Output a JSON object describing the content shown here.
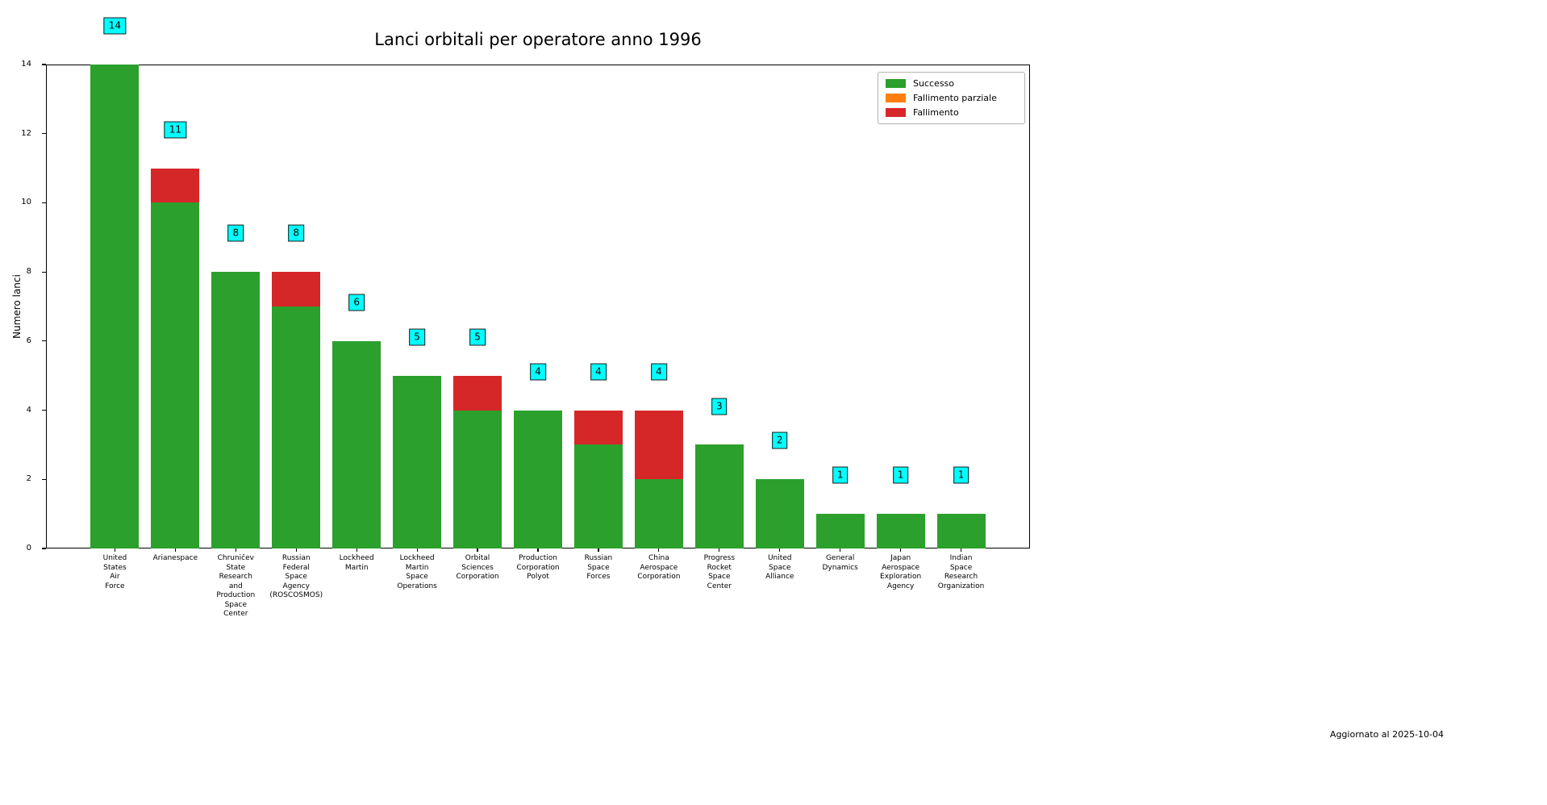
{
  "figure": {
    "footer_note": "Aggiornato al 2025-10-04"
  },
  "colors": {
    "success": "#2ca02c",
    "partial_failure": "#ff7f0e",
    "failure": "#d62728",
    "value_label_bg": "#00ffff",
    "value_label_border": "#1a1a1a",
    "axis": "#000000"
  },
  "chart_data": {
    "type": "bar",
    "stacked": true,
    "title": "Lanci orbitali per operatore anno 1996",
    "xlabel": "",
    "ylabel": "Numero lanci",
    "ylim": [
      0,
      14
    ],
    "yticks": [
      0,
      2,
      4,
      6,
      8,
      10,
      12,
      14
    ],
    "grid": false,
    "legend_position": "upper-right",
    "categories": [
      "United\nStates\nAir\nForce",
      "Arianespace",
      "Chruničev\nState\nResearch\nand\nProduction\nSpace\nCenter",
      "Russian\nFederal\nSpace\nAgency\n(ROSCOSMOS)",
      "Lockheed\nMartin",
      "Lockheed\nMartin\nSpace\nOperations",
      "Orbital\nSciences\nCorporation",
      "Production\nCorporation\nPolyot",
      "Russian\nSpace\nForces",
      "China\nAerospace\nCorporation",
      "Progress\nRocket\nSpace\nCenter",
      "United\nSpace\nAlliance",
      "General\nDynamics",
      "Japan\nAerospace\nExploration\nAgency",
      "Indian\nSpace\nResearch\nOrganization"
    ],
    "series": [
      {
        "name": "Successo",
        "color": "#2ca02c",
        "values": [
          14,
          10,
          8,
          7,
          6,
          5,
          4,
          4,
          3,
          2,
          3,
          2,
          1,
          1,
          1
        ]
      },
      {
        "name": "Fallimento parziale",
        "color": "#ff7f0e",
        "values": [
          0,
          0,
          0,
          0,
          0,
          0,
          0,
          0,
          0,
          0,
          0,
          0,
          0,
          0,
          0
        ]
      },
      {
        "name": "Fallimento",
        "color": "#d62728",
        "values": [
          0,
          1,
          0,
          1,
          0,
          0,
          1,
          0,
          1,
          2,
          0,
          0,
          0,
          0,
          0
        ]
      }
    ],
    "totals": [
      14,
      11,
      8,
      8,
      6,
      5,
      5,
      4,
      4,
      4,
      3,
      2,
      1,
      1,
      1
    ]
  }
}
